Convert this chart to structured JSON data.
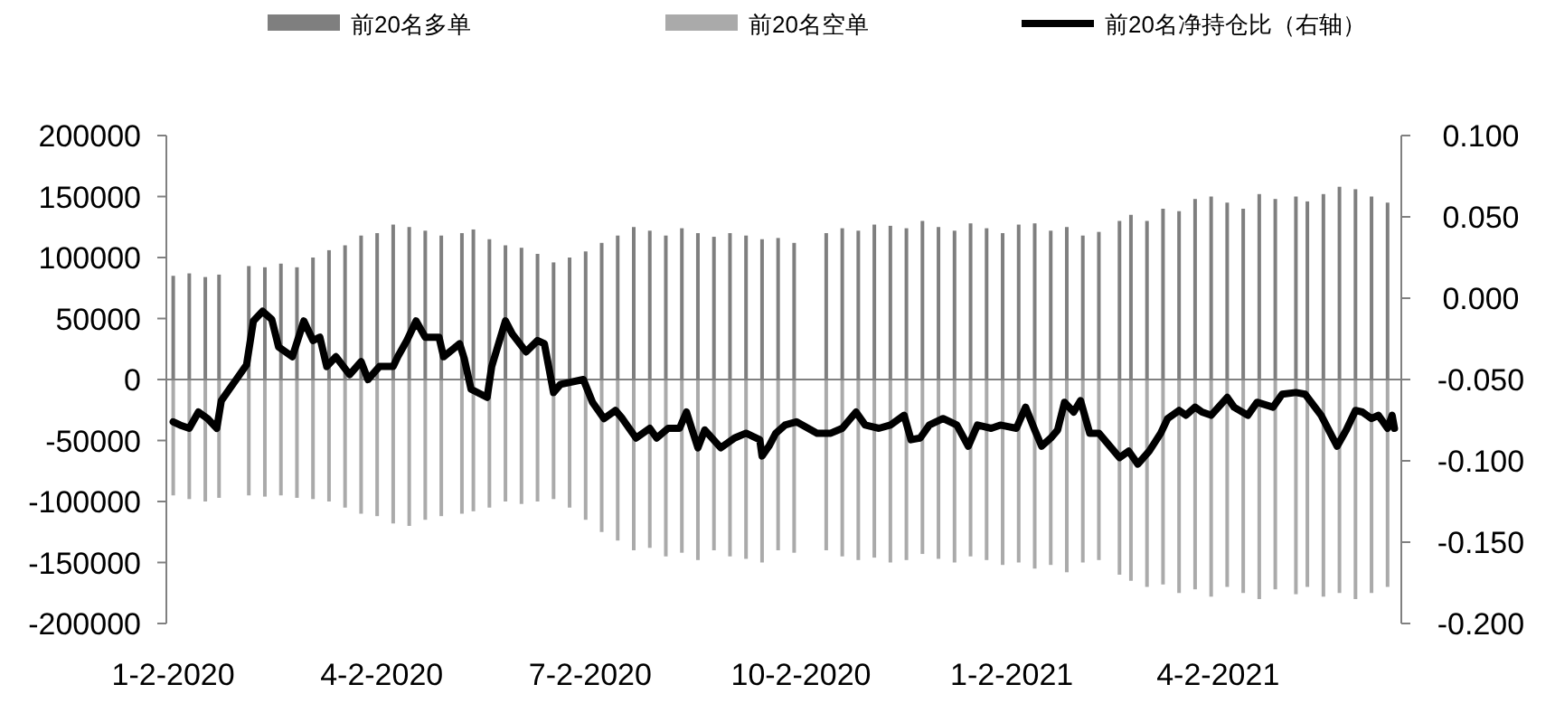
{
  "chart_data": {
    "type": "bar",
    "legend": "top",
    "xlim": [
      "2019-12-30",
      "2021-06-21"
    ],
    "xticks": [
      {
        "value": "2020-01-02",
        "label": "1-2-2020"
      },
      {
        "value": "2020-04-02",
        "label": "4-2-2020"
      },
      {
        "value": "2020-07-02",
        "label": "7-2-2020"
      },
      {
        "value": "2020-10-02",
        "label": "10-2-2020"
      },
      {
        "value": "2021-01-02",
        "label": "1-2-2021"
      },
      {
        "value": "2021-04-02",
        "label": "4-2-2021"
      }
    ],
    "ylim": [
      -200000,
      200000
    ],
    "yticks": [
      -200000,
      -150000,
      -100000,
      -50000,
      0,
      50000,
      100000,
      150000,
      200000
    ],
    "y2lim": [
      -0.2,
      0.1
    ],
    "y2ticks": [
      {
        "value": -0.2,
        "label": "-0.200"
      },
      {
        "value": -0.15,
        "label": "-0.150"
      },
      {
        "value": -0.1,
        "label": "-0.100"
      },
      {
        "value": -0.05,
        "label": "-0.050"
      },
      {
        "value": 0,
        "label": "0.000"
      },
      {
        "value": 0.05,
        "label": "0.050"
      },
      {
        "value": 0.1,
        "label": "0.100"
      }
    ],
    "series": [
      {
        "name": "前20名多单",
        "color": "#7f7f7f",
        "x": [
          "2020-01-02",
          "2020-01-09",
          "2020-01-16",
          "2020-01-22",
          "2020-02-04",
          "2020-02-11",
          "2020-02-18",
          "2020-02-25",
          "2020-03-03",
          "2020-03-10",
          "2020-03-17",
          "2020-03-24",
          "2020-03-31",
          "2020-04-07",
          "2020-04-14",
          "2020-04-21",
          "2020-04-28",
          "2020-05-07",
          "2020-05-12",
          "2020-05-19",
          "2020-05-26",
          "2020-06-02",
          "2020-06-09",
          "2020-06-16",
          "2020-06-23",
          "2020-06-30",
          "2020-07-07",
          "2020-07-14",
          "2020-07-21",
          "2020-07-28",
          "2020-08-04",
          "2020-08-11",
          "2020-08-18",
          "2020-08-25",
          "2020-09-01",
          "2020-09-08",
          "2020-09-15",
          "2020-09-22",
          "2020-09-29",
          "2020-10-13",
          "2020-10-20",
          "2020-10-27",
          "2020-11-03",
          "2020-11-10",
          "2020-11-17",
          "2020-11-24",
          "2020-12-01",
          "2020-12-08",
          "2020-12-15",
          "2020-12-22",
          "2020-12-29",
          "2021-01-05",
          "2021-01-12",
          "2021-01-19",
          "2021-01-26",
          "2021-02-02",
          "2021-02-09",
          "2021-02-18",
          "2021-02-23",
          "2021-03-02",
          "2021-03-09",
          "2021-03-16",
          "2021-03-23",
          "2021-03-30",
          "2021-04-06",
          "2021-04-13",
          "2021-04-20",
          "2021-04-27",
          "2021-05-06",
          "2021-05-11",
          "2021-05-18",
          "2021-05-25",
          "2021-06-01",
          "2021-06-08",
          "2021-06-15"
        ],
        "values": [
          85000,
          87000,
          84000,
          86000,
          93000,
          92000,
          95000,
          92000,
          100000,
          106000,
          110000,
          118000,
          120000,
          127000,
          125000,
          122000,
          118000,
          120000,
          123000,
          115000,
          110000,
          108000,
          103000,
          96000,
          100000,
          105000,
          112000,
          118000,
          125000,
          122000,
          118000,
          124000,
          120000,
          117000,
          120000,
          118000,
          115000,
          116000,
          112000,
          120000,
          124000,
          122000,
          127000,
          126000,
          124000,
          130000,
          125000,
          122000,
          128000,
          124000,
          120000,
          127000,
          128000,
          122000,
          125000,
          118000,
          121000,
          130000,
          135000,
          130000,
          140000,
          138000,
          148000,
          150000,
          145000,
          140000,
          152000,
          148000,
          150000,
          146000,
          152000,
          158000,
          156000,
          150000,
          145000
        ]
      },
      {
        "name": "前20名空单",
        "color": "#aaaaaa",
        "x": [
          "2020-01-02",
          "2020-01-09",
          "2020-01-16",
          "2020-01-22",
          "2020-02-04",
          "2020-02-11",
          "2020-02-18",
          "2020-02-25",
          "2020-03-03",
          "2020-03-10",
          "2020-03-17",
          "2020-03-24",
          "2020-03-31",
          "2020-04-07",
          "2020-04-14",
          "2020-04-21",
          "2020-04-28",
          "2020-05-07",
          "2020-05-12",
          "2020-05-19",
          "2020-05-26",
          "2020-06-02",
          "2020-06-09",
          "2020-06-16",
          "2020-06-23",
          "2020-06-30",
          "2020-07-07",
          "2020-07-14",
          "2020-07-21",
          "2020-07-28",
          "2020-08-04",
          "2020-08-11",
          "2020-08-18",
          "2020-08-25",
          "2020-09-01",
          "2020-09-08",
          "2020-09-15",
          "2020-09-22",
          "2020-09-29",
          "2020-10-13",
          "2020-10-20",
          "2020-10-27",
          "2020-11-03",
          "2020-11-10",
          "2020-11-17",
          "2020-11-24",
          "2020-12-01",
          "2020-12-08",
          "2020-12-15",
          "2020-12-22",
          "2020-12-29",
          "2021-01-05",
          "2021-01-12",
          "2021-01-19",
          "2021-01-26",
          "2021-02-02",
          "2021-02-09",
          "2021-02-18",
          "2021-02-23",
          "2021-03-02",
          "2021-03-09",
          "2021-03-16",
          "2021-03-23",
          "2021-03-30",
          "2021-04-06",
          "2021-04-13",
          "2021-04-20",
          "2021-04-27",
          "2021-05-06",
          "2021-05-11",
          "2021-05-18",
          "2021-05-25",
          "2021-06-01",
          "2021-06-08",
          "2021-06-15"
        ],
        "values": [
          -95000,
          -98000,
          -100000,
          -97000,
          -95000,
          -96000,
          -95000,
          -97000,
          -98000,
          -100000,
          -105000,
          -110000,
          -112000,
          -118000,
          -120000,
          -115000,
          -112000,
          -110000,
          -108000,
          -105000,
          -100000,
          -102000,
          -100000,
          -98000,
          -105000,
          -115000,
          -125000,
          -132000,
          -140000,
          -138000,
          -145000,
          -142000,
          -148000,
          -140000,
          -145000,
          -147000,
          -150000,
          -140000,
          -142000,
          -140000,
          -145000,
          -148000,
          -146000,
          -150000,
          -148000,
          -143000,
          -147000,
          -150000,
          -145000,
          -148000,
          -152000,
          -150000,
          -155000,
          -152000,
          -158000,
          -150000,
          -148000,
          -160000,
          -165000,
          -170000,
          -168000,
          -175000,
          -172000,
          -178000,
          -170000,
          -175000,
          -180000,
          -172000,
          -176000,
          -170000,
          -178000,
          -175000,
          -180000,
          -175000,
          -170000
        ]
      },
      {
        "name": "前20名净持仓比（右轴）",
        "type": "line",
        "axis": "y2",
        "color": "#000000",
        "x": [
          "2020-01-02",
          "2020-01-05",
          "2020-01-09",
          "2020-01-13",
          "2020-01-17",
          "2020-01-21",
          "2020-01-23",
          "2020-02-03",
          "2020-02-06",
          "2020-02-10",
          "2020-02-14",
          "2020-02-17",
          "2020-02-23",
          "2020-02-28",
          "2020-03-03",
          "2020-03-06",
          "2020-03-09",
          "2020-03-13",
          "2020-03-19",
          "2020-03-24",
          "2020-03-27",
          "2020-04-01",
          "2020-04-07",
          "2020-04-09",
          "2020-04-13",
          "2020-04-17",
          "2020-04-21",
          "2020-04-27",
          "2020-04-29",
          "2020-05-06",
          "2020-05-08",
          "2020-05-11",
          "2020-05-18",
          "2020-05-20",
          "2020-05-26",
          "2020-05-29",
          "2020-06-04",
          "2020-06-09",
          "2020-06-12",
          "2020-06-16",
          "2020-06-19",
          "2020-06-29",
          "2020-07-03",
          "2020-07-08",
          "2020-07-13",
          "2020-07-16",
          "2020-07-22",
          "2020-07-28",
          "2020-07-31",
          "2020-08-05",
          "2020-08-10",
          "2020-08-13",
          "2020-08-18",
          "2020-08-21",
          "2020-08-28",
          "2020-09-03",
          "2020-09-08",
          "2020-09-14",
          "2020-09-15",
          "2020-09-18",
          "2020-09-21",
          "2020-09-25",
          "2020-09-30",
          "2020-10-09",
          "2020-10-15",
          "2020-10-20",
          "2020-10-26",
          "2020-10-30",
          "2020-11-05",
          "2020-11-10",
          "2020-11-16",
          "2020-11-19",
          "2020-11-23",
          "2020-11-27",
          "2020-12-03",
          "2020-12-09",
          "2020-12-14",
          "2020-12-18",
          "2020-12-24",
          "2020-12-28",
          "2021-01-04",
          "2021-01-08",
          "2021-01-12",
          "2021-01-15",
          "2021-01-19",
          "2021-01-22",
          "2021-01-25",
          "2021-01-29",
          "2021-02-01",
          "2021-02-05",
          "2021-02-09",
          "2021-02-18",
          "2021-02-22",
          "2021-02-26",
          "2021-03-03",
          "2021-03-08",
          "2021-03-11",
          "2021-03-16",
          "2021-03-19",
          "2021-03-23",
          "2021-03-26",
          "2021-03-30",
          "2021-04-06",
          "2021-04-09",
          "2021-04-15",
          "2021-04-19",
          "2021-04-26",
          "2021-04-30",
          "2021-05-06",
          "2021-05-10",
          "2021-05-17",
          "2021-05-24",
          "2021-05-28",
          "2021-06-01",
          "2021-06-04",
          "2021-06-08",
          "2021-06-11",
          "2021-06-15",
          "2021-06-17",
          "2021-06-18"
        ],
        "values": [
          -0.076,
          -0.078,
          -0.08,
          -0.07,
          -0.074,
          -0.08,
          -0.063,
          -0.041,
          -0.014,
          -0.008,
          -0.013,
          -0.03,
          -0.036,
          -0.014,
          -0.026,
          -0.024,
          -0.042,
          -0.036,
          -0.047,
          -0.039,
          -0.05,
          -0.042,
          -0.042,
          -0.036,
          -0.026,
          -0.014,
          -0.024,
          -0.024,
          -0.036,
          -0.028,
          -0.037,
          -0.056,
          -0.061,
          -0.042,
          -0.014,
          -0.022,
          -0.033,
          -0.026,
          -0.028,
          -0.058,
          -0.053,
          -0.05,
          -0.064,
          -0.074,
          -0.069,
          -0.074,
          -0.086,
          -0.08,
          -0.086,
          -0.08,
          -0.08,
          -0.07,
          -0.092,
          -0.081,
          -0.092,
          -0.086,
          -0.083,
          -0.087,
          -0.097,
          -0.091,
          -0.083,
          -0.078,
          -0.076,
          -0.083,
          -0.083,
          -0.08,
          -0.07,
          -0.078,
          -0.08,
          -0.078,
          -0.072,
          -0.087,
          -0.086,
          -0.078,
          -0.074,
          -0.078,
          -0.091,
          -0.078,
          -0.08,
          -0.078,
          -0.08,
          -0.067,
          -0.081,
          -0.091,
          -0.086,
          -0.081,
          -0.064,
          -0.07,
          -0.063,
          -0.083,
          -0.083,
          -0.098,
          -0.094,
          -0.102,
          -0.094,
          -0.083,
          -0.074,
          -0.069,
          -0.072,
          -0.067,
          -0.07,
          -0.072,
          -0.061,
          -0.067,
          -0.072,
          -0.064,
          -0.067,
          -0.059,
          -0.058,
          -0.059,
          -0.072,
          -0.091,
          -0.081,
          -0.069,
          -0.07,
          -0.074,
          -0.072,
          -0.08,
          -0.072,
          -0.08
        ]
      }
    ]
  }
}
